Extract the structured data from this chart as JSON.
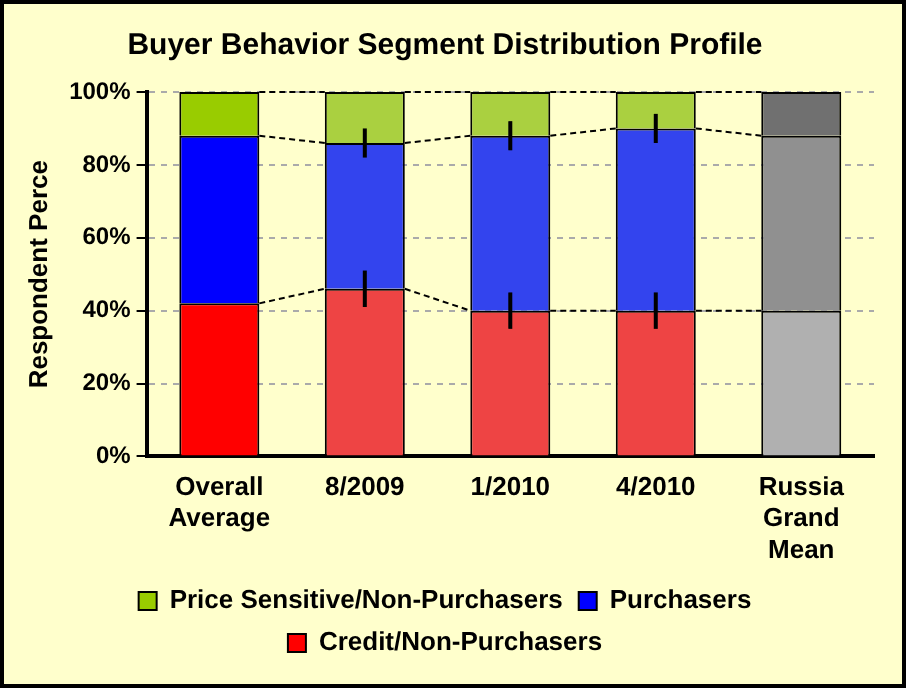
{
  "chart_data": {
    "type": "bar",
    "title": "Buyer Behavior Segment Distribution Profile",
    "ylabel": "Respondent Perce",
    "categories": [
      "Overall\nAverage",
      "8/2009",
      "1/2010",
      "4/2010",
      "Russia\nGrand\nMean"
    ],
    "stacked": true,
    "series": [
      {
        "name": "Credit/Non-Purchasers",
        "color": "#ff0000",
        "colors": [
          "#ff0000",
          "#ee4444",
          "#ee4444",
          "#ee4444",
          "#b0b0b0"
        ],
        "values": [
          42,
          46,
          40,
          40,
          40
        ],
        "errors": [
          null,
          5,
          5,
          5,
          null
        ]
      },
      {
        "name": "Purchasers",
        "color": "#0000ff",
        "colors": [
          "#0000ff",
          "#3344ee",
          "#3344ee",
          "#3344ee",
          "#909090"
        ],
        "values": [
          46,
          40,
          48,
          50,
          48
        ],
        "errors": [
          null,
          4,
          4,
          4,
          null
        ]
      },
      {
        "name": "Price Sensitive/Non-Purchasers",
        "color": "#99cc00",
        "colors": [
          "#99cc00",
          "#aad040",
          "#aad040",
          "#aad040",
          "#707070"
        ],
        "values": [
          12,
          14,
          12,
          10,
          12
        ]
      }
    ],
    "ylim": [
      0,
      100
    ],
    "yticks": [
      {
        "value": 0,
        "label": "0%"
      },
      {
        "value": 20,
        "label": "20%"
      },
      {
        "value": 40,
        "label": "40%"
      },
      {
        "value": 60,
        "label": "60%"
      },
      {
        "value": 80,
        "label": "80%"
      },
      {
        "value": 100,
        "label": "100%"
      }
    ],
    "grid": "y",
    "legend": "bottom"
  }
}
